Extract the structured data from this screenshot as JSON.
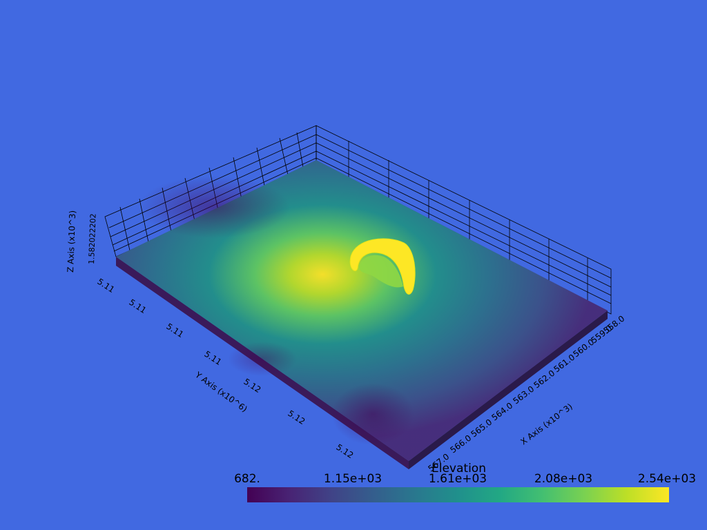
{
  "axes": {
    "x_title": "X Axis (x10^3)",
    "y_title": "Y Axis (x10^6)",
    "z_title": "Z Axis (x10^3)",
    "x_ticks": [
      "558.0",
      "559.0",
      "560.0",
      "561.0",
      "562.0",
      "563.0",
      "564.0",
      "565.0",
      "566.0",
      "567.0"
    ],
    "y_ticks": [
      "5.11",
      "5.11",
      "5.11",
      "5.11",
      "5.12",
      "5.12",
      "5.12"
    ],
    "z_ticks_overlap": "1.582022202"
  },
  "scalar_bar": {
    "title": "Elevation",
    "labels": [
      "682.",
      "1.15e+03",
      "1.61e+03",
      "2.08e+03",
      "2.54e+03"
    ],
    "range": [
      682,
      2540
    ],
    "colormap": "viridis"
  },
  "colors": {
    "background": "#4169e1",
    "grid": "#000000"
  }
}
